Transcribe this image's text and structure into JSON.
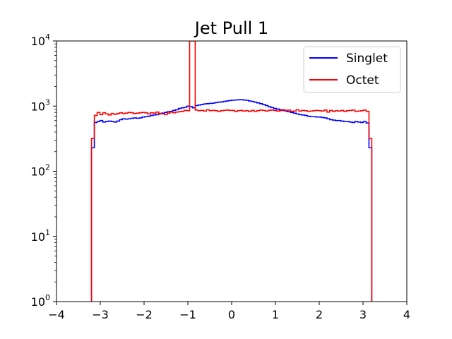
{
  "chart_data": {
    "type": "step-histogram",
    "title": "Jet Pull 1",
    "xlabel": "",
    "ylabel": "",
    "xlim": [
      -4,
      4
    ],
    "ylim": [
      1,
      10000
    ],
    "yscale": "log",
    "x_ticks": [
      "−4",
      "−3",
      "−2",
      "−1",
      "0",
      "1",
      "2",
      "3",
      "4"
    ],
    "y_ticks": [
      {
        "base": "10",
        "exp": "0"
      },
      {
        "base": "10",
        "exp": "1"
      },
      {
        "base": "10",
        "exp": "2"
      },
      {
        "base": "10",
        "exp": "3"
      },
      {
        "base": "10",
        "exp": "4"
      }
    ],
    "legend": {
      "position": "upper-right",
      "entries": [
        "Singlet",
        "Octet"
      ]
    },
    "bins": {
      "start": -3.2,
      "end": 3.2,
      "count": 100
    },
    "series": [
      {
        "name": "Singlet",
        "color": "#0000ff",
        "values": [
          230,
          560,
          580,
          600,
          570,
          580,
          590,
          580,
          570,
          590,
          620,
          640,
          630,
          640,
          650,
          660,
          650,
          660,
          680,
          690,
          700,
          720,
          730,
          740,
          760,
          780,
          800,
          820,
          830,
          860,
          880,
          920,
          940,
          960,
          1000,
          980,
          940,
          1020,
          1040,
          1060,
          1080,
          1090,
          1100,
          1110,
          1130,
          1150,
          1160,
          1180,
          1200,
          1220,
          1230,
          1240,
          1250,
          1260,
          1240,
          1230,
          1200,
          1180,
          1150,
          1120,
          1090,
          1060,
          1020,
          980,
          950,
          920,
          900,
          880,
          860,
          840,
          820,
          800,
          780,
          760,
          740,
          730,
          720,
          700,
          690,
          690,
          680,
          680,
          670,
          660,
          640,
          620,
          610,
          600,
          600,
          590,
          580,
          580,
          570,
          560,
          580,
          570,
          560,
          580,
          550,
          230
        ]
      },
      {
        "name": "Octet",
        "color": "#ff0000",
        "values": [
          320,
          720,
          800,
          740,
          790,
          760,
          730,
          770,
          750,
          770,
          790,
          770,
          780,
          800,
          790,
          770,
          780,
          790,
          800,
          790,
          760,
          790,
          780,
          810,
          770,
          760,
          740,
          780,
          810,
          790,
          810,
          820,
          830,
          860,
          850,
          10000,
          10000,
          870,
          850,
          860,
          840,
          880,
          850,
          860,
          850,
          830,
          850,
          860,
          870,
          860,
          860,
          830,
          850,
          860,
          840,
          850,
          830,
          860,
          830,
          850,
          870,
          860,
          840,
          860,
          870,
          860,
          840,
          850,
          880,
          860,
          870,
          830,
          840,
          880,
          840,
          860,
          850,
          830,
          840,
          850,
          860,
          850,
          840,
          870,
          810,
          860,
          830,
          850,
          840,
          860,
          830,
          850,
          860,
          870,
          830,
          840,
          850,
          870,
          830,
          320
        ]
      }
    ]
  }
}
